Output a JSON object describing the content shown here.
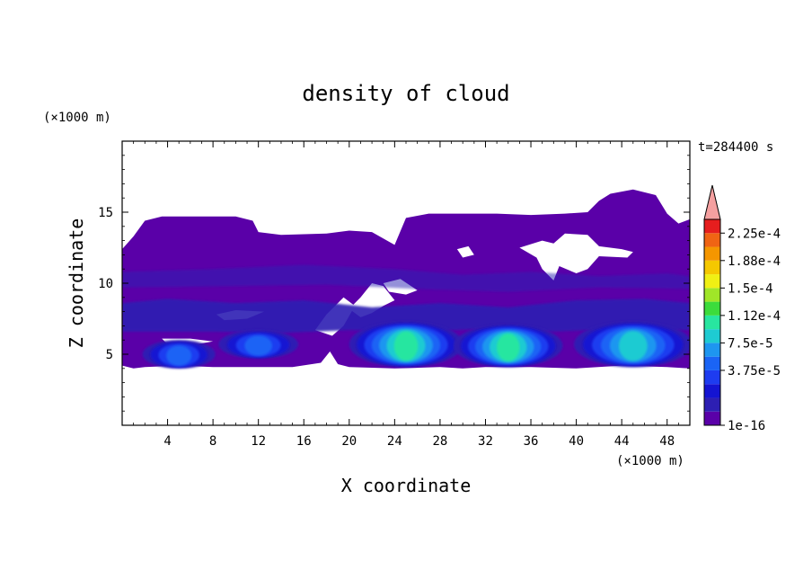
{
  "chart_data": {
    "type": "heatmap",
    "title": "density of cloud",
    "xlabel": "X coordinate",
    "ylabel": "Z coordinate",
    "x_unit": "(×1000 m)",
    "y_unit": "(×1000 m)",
    "time_label": "t=284400 s",
    "xlim": [
      0,
      50
    ],
    "ylim": [
      0,
      20
    ],
    "x_ticks": [
      "4",
      "8",
      "12",
      "16",
      "20",
      "24",
      "28",
      "32",
      "36",
      "40",
      "44",
      "48"
    ],
    "y_ticks": [
      "5",
      "10",
      "15"
    ],
    "colorbar": {
      "labels": [
        "2.25e-4",
        "1.88e-4",
        "1.5e-4",
        "1.12e-4",
        "7.5e-5",
        "3.75e-5",
        "1e-16"
      ],
      "levels_colors": [
        "#5a00a8",
        "#2d1fb3",
        "#1414d2",
        "#1e3cf0",
        "#1a64f5",
        "#1e96f0",
        "#1ecbd2",
        "#28e6a0",
        "#3cdc3c",
        "#a0e628",
        "#f0f014",
        "#f5c800",
        "#f59600",
        "#f06414",
        "#e61e1e",
        "#f5a0a0"
      ]
    },
    "cloud_layer": {
      "base_km": 4.2,
      "top_km_range": [
        12.3,
        16.5
      ],
      "max_density": 0.00013
    },
    "cores": [
      {
        "x_km": 5,
        "z_km": 5.0,
        "density": 5e-05
      },
      {
        "x_km": 12,
        "z_km": 5.8,
        "density": 6e-05
      },
      {
        "x_km": 25,
        "z_km": 5.8,
        "density": 0.00013
      },
      {
        "x_km": 34,
        "z_km": 5.8,
        "density": 0.00012
      },
      {
        "x_km": 45,
        "z_km": 5.8,
        "density": 0.00011
      }
    ]
  }
}
